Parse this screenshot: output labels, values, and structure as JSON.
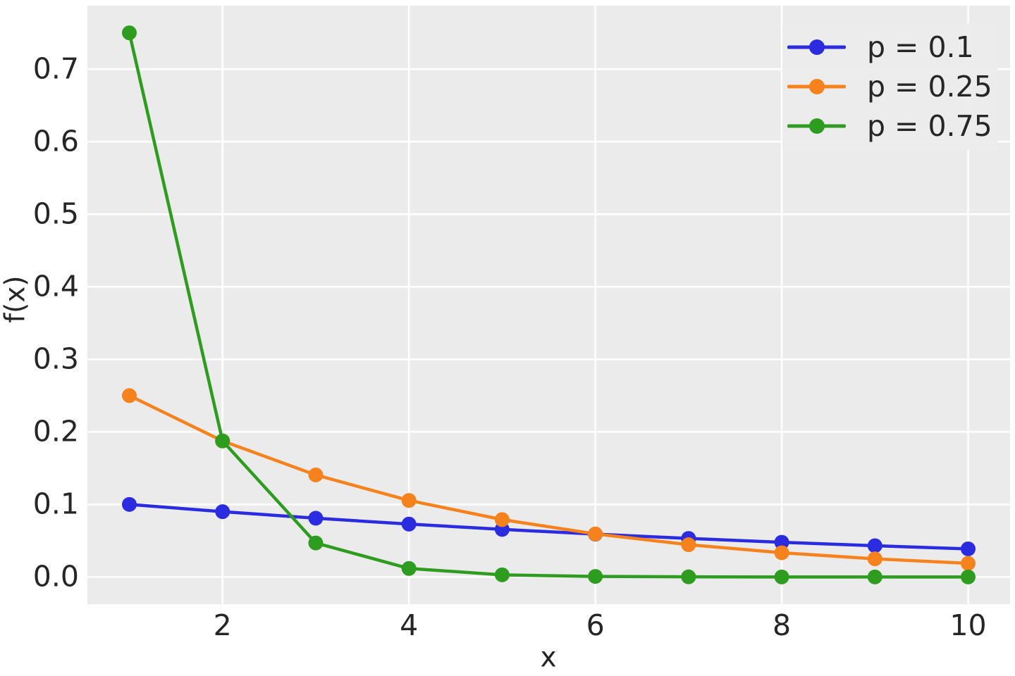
{
  "chart_data": {
    "type": "line",
    "title": "",
    "xlabel": "x",
    "ylabel": "f(x)",
    "x": [
      1,
      2,
      3,
      4,
      5,
      6,
      7,
      8,
      9,
      10
    ],
    "series": [
      {
        "name": "p = 0.1",
        "color": "#2b2be0",
        "values": [
          0.1,
          0.09,
          0.081,
          0.0729,
          0.06561,
          0.059049,
          0.0531441,
          0.0478297,
          0.0430467,
          0.038742
        ]
      },
      {
        "name": "p = 0.25",
        "color": "#f6821d",
        "values": [
          0.25,
          0.1875,
          0.140625,
          0.1054688,
          0.0791016,
          0.0593262,
          0.0444946,
          0.033371,
          0.0250282,
          0.0187712
        ]
      },
      {
        "name": "p = 0.75",
        "color": "#2e9c1e",
        "values": [
          0.75,
          0.1875,
          0.046875,
          0.0117188,
          0.0029297,
          0.0007324,
          0.0001831,
          4.58e-05,
          1.14e-05,
          2.9e-06
        ]
      }
    ],
    "xticks": [
      2,
      4,
      6,
      8,
      10
    ],
    "xtick_labels": [
      "2",
      "4",
      "6",
      "8",
      "10"
    ],
    "yticks": [
      0.0,
      0.1,
      0.2,
      0.3,
      0.4,
      0.5,
      0.6,
      0.7
    ],
    "ytick_labels": [
      "0.0",
      "0.1",
      "0.2",
      "0.3",
      "0.4",
      "0.5",
      "0.6",
      "0.7"
    ],
    "xlim": [
      0.55,
      10.45
    ],
    "ylim": [
      -0.0375,
      0.7875
    ],
    "grid": true,
    "legend_position": "upper right",
    "colors": {
      "figure_background": "#ffffff",
      "axes_background": "#ebebeb",
      "grid_color": "#ffffff",
      "text_color": "#262626"
    }
  }
}
